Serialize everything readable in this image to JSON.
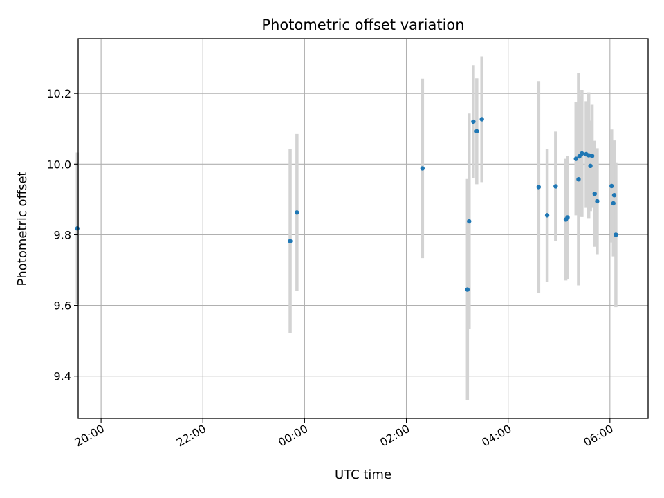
{
  "chart_data": {
    "type": "scatter",
    "title": "Photometric offset variation",
    "xlabel": "UTC time",
    "ylabel": "Photometric offset",
    "x_axis": {
      "kind": "time",
      "range": [
        "19:33",
        "06:45"
      ],
      "ticks": [
        "20:00",
        "22:00",
        "00:00",
        "02:00",
        "04:00",
        "06:00"
      ]
    },
    "y_axis": {
      "range": [
        9.28,
        10.355
      ],
      "ticks": [
        "9.4",
        "9.6",
        "9.8",
        "10.0",
        "10.2"
      ]
    },
    "grid": true,
    "legend": "none",
    "colors": {
      "point": "#1f77b4",
      "errorbar": "#d3d3d3",
      "grid": "#b0b0b0"
    },
    "points": [
      {
        "x": "19:32",
        "y": 9.818,
        "err": 0.215
      },
      {
        "x": "23:43",
        "y": 9.782,
        "err": 0.26
      },
      {
        "x": "23:51",
        "y": 9.863,
        "err": 0.222
      },
      {
        "x": "02:19",
        "y": 9.988,
        "err": 0.254
      },
      {
        "x": "03:12",
        "y": 9.645,
        "err": 0.313
      },
      {
        "x": "03:14",
        "y": 9.838,
        "err": 0.305
      },
      {
        "x": "03:19",
        "y": 10.12,
        "err": 0.16
      },
      {
        "x": "03:23",
        "y": 10.093,
        "err": 0.15
      },
      {
        "x": "03:29",
        "y": 10.127,
        "err": 0.178
      },
      {
        "x": "04:36",
        "y": 9.935,
        "err": 0.3
      },
      {
        "x": "04:46",
        "y": 9.855,
        "err": 0.188
      },
      {
        "x": "04:56",
        "y": 9.937,
        "err": 0.155
      },
      {
        "x": "05:08",
        "y": 9.843,
        "err": 0.172
      },
      {
        "x": "05:10",
        "y": 9.849,
        "err": 0.175
      },
      {
        "x": "05:20",
        "y": 10.015,
        "err": 0.16
      },
      {
        "x": "05:23",
        "y": 9.957,
        "err": 0.3
      },
      {
        "x": "05:24",
        "y": 10.022,
        "err": 0.17
      },
      {
        "x": "05:27",
        "y": 10.03,
        "err": 0.18
      },
      {
        "x": "05:32",
        "y": 10.028,
        "err": 0.15
      },
      {
        "x": "05:35",
        "y": 10.025,
        "err": 0.178
      },
      {
        "x": "05:37",
        "y": 9.995,
        "err": 0.128
      },
      {
        "x": "05:39",
        "y": 10.023,
        "err": 0.145
      },
      {
        "x": "05:42",
        "y": 9.916,
        "err": 0.15
      },
      {
        "x": "05:45",
        "y": 9.895,
        "err": 0.15
      },
      {
        "x": "06:02",
        "y": 9.938,
        "err": 0.16
      },
      {
        "x": "06:04",
        "y": 9.889,
        "err": 0.15
      },
      {
        "x": "06:05",
        "y": 9.912,
        "err": 0.155
      },
      {
        "x": "06:07",
        "y": 9.8,
        "err": 0.205
      }
    ]
  }
}
